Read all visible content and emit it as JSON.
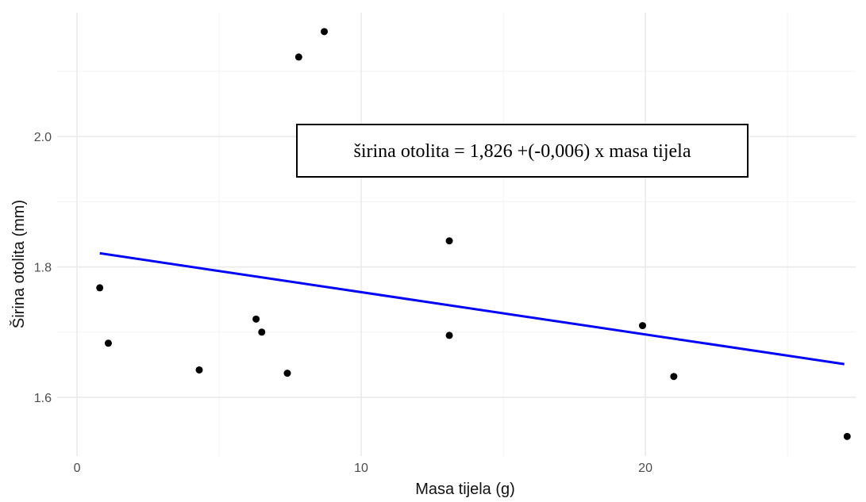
{
  "chart_data": {
    "type": "scatter",
    "title": "",
    "xlabel": "Masa tijela (g)",
    "ylabel": "Širina otolita (mm)",
    "xlim": [
      -0.7,
      27.4
    ],
    "ylim": [
      1.51,
      2.19
    ],
    "x_ticks": [
      {
        "value": 0,
        "label": "0"
      },
      {
        "value": 10,
        "label": "10"
      },
      {
        "value": 20,
        "label": "20"
      }
    ],
    "y_ticks": [
      {
        "value": 1.6,
        "label": "1.6"
      },
      {
        "value": 1.8,
        "label": "1.8"
      },
      {
        "value": 2.0,
        "label": "2.0"
      }
    ],
    "x_minor_ticks": [
      5,
      15,
      25
    ],
    "y_minor_ticks": [
      1.7,
      1.9,
      2.1
    ],
    "grid": true,
    "points": [
      {
        "x": 0.8,
        "y": 1.768
      },
      {
        "x": 1.1,
        "y": 1.683
      },
      {
        "x": 4.3,
        "y": 1.642
      },
      {
        "x": 6.3,
        "y": 1.72
      },
      {
        "x": 6.5,
        "y": 1.7
      },
      {
        "x": 7.4,
        "y": 1.637
      },
      {
        "x": 7.8,
        "y": 2.122
      },
      {
        "x": 8.7,
        "y": 2.161
      },
      {
        "x": 13.1,
        "y": 1.84
      },
      {
        "x": 13.1,
        "y": 1.695
      },
      {
        "x": 19.9,
        "y": 1.71
      },
      {
        "x": 21.0,
        "y": 1.632
      },
      {
        "x": 27.1,
        "y": 1.54
      }
    ],
    "trend_line": {
      "x": [
        0.8,
        27.0
      ],
      "y": [
        1.821,
        1.651
      ],
      "color": "#0000ff"
    },
    "annotation": "širina otolita =  1,826 +(-0,006) x masa tijela",
    "colors": {
      "points": "#000000",
      "line": "#0000ff",
      "grid": "#e9e9e9"
    }
  }
}
